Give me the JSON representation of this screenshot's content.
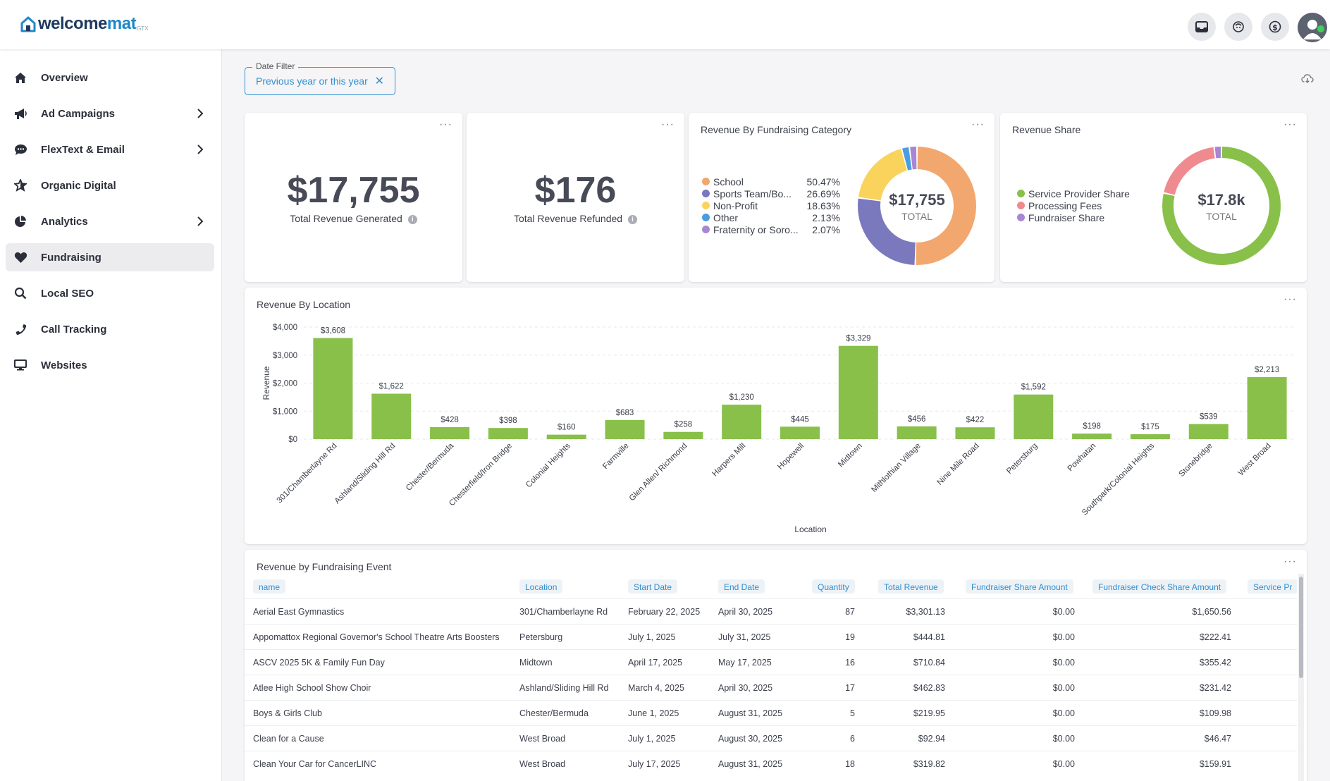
{
  "app": {
    "logo_main": "welcome",
    "logo_accent": "mat",
    "logo_sub": "GTX"
  },
  "top_icons": [
    "inbox-icon",
    "support-icon",
    "billing-icon",
    "user-icon"
  ],
  "sidebar": {
    "items": [
      {
        "label": "Overview",
        "icon": "home-icon",
        "has_children": false,
        "active": false
      },
      {
        "label": "Ad Campaigns",
        "icon": "megaphone-icon",
        "has_children": true,
        "active": false
      },
      {
        "label": "FlexText & Email",
        "icon": "chat-icon",
        "has_children": true,
        "active": false
      },
      {
        "label": "Organic Digital",
        "icon": "star-icon",
        "has_children": false,
        "active": false
      },
      {
        "label": "Analytics",
        "icon": "pie-chart-icon",
        "has_children": true,
        "active": false
      },
      {
        "label": "Fundraising",
        "icon": "heart-icon",
        "has_children": false,
        "active": true
      },
      {
        "label": "Local SEO",
        "icon": "search-icon",
        "has_children": false,
        "active": false
      },
      {
        "label": "Call Tracking",
        "icon": "phone-icon",
        "has_children": false,
        "active": false
      },
      {
        "label": "Websites",
        "icon": "monitor-icon",
        "has_children": false,
        "active": false
      }
    ]
  },
  "filter": {
    "label": "Date Filter",
    "value": "Previous year or this year"
  },
  "kpis": {
    "revenue_generated": {
      "value": "$17,755",
      "label": "Total Revenue Generated"
    },
    "revenue_refunded": {
      "value": "$176",
      "label": "Total Revenue Refunded"
    }
  },
  "category_card": {
    "title": "Revenue By Fundraising Category",
    "center_value": "$17,755",
    "center_label": "TOTAL"
  },
  "share_card": {
    "title": "Revenue Share",
    "center_value": "$17.8k",
    "center_label": "TOTAL"
  },
  "location_card": {
    "title": "Revenue By Location"
  },
  "event_table": {
    "title": "Revenue by Fundraising Event",
    "columns": [
      "name",
      "Location",
      "Start Date",
      "End Date",
      "Quantity",
      "Total Revenue",
      "Fundraiser Share Amount",
      "Fundraiser Check Share Amount",
      "Service Pr"
    ],
    "rows": [
      [
        "Aerial East Gymnastics",
        "301/Chamberlayne Rd",
        "February 22, 2025",
        "April 30, 2025",
        "87",
        "$3,301.13",
        "$0.00",
        "$1,650.56"
      ],
      [
        "Appomattox Regional Governor's School Theatre Arts Boosters",
        "Petersburg",
        "July 1, 2025",
        "July 31, 2025",
        "19",
        "$444.81",
        "$0.00",
        "$222.41"
      ],
      [
        "ASCV 2025 5K & Family Fun Day",
        "Midtown",
        "April 17, 2025",
        "May 17, 2025",
        "16",
        "$710.84",
        "$0.00",
        "$355.42"
      ],
      [
        "Atlee High School Show Choir",
        "Ashland/Sliding Hill Rd",
        "March 4, 2025",
        "April 30, 2025",
        "17",
        "$462.83",
        "$0.00",
        "$231.42"
      ],
      [
        "Boys & Girls Club",
        "Chester/Bermuda",
        "June 1, 2025",
        "August 31, 2025",
        "5",
        "$219.95",
        "$0.00",
        "$109.98"
      ],
      [
        "Clean for a Cause",
        "West Broad",
        "July 1, 2025",
        "August 30, 2025",
        "6",
        "$92.94",
        "$0.00",
        "$46.47"
      ],
      [
        "Clean Your Car for CancerLINC",
        "West Broad",
        "July 17, 2025",
        "August 31, 2025",
        "18",
        "$319.82",
        "$0.00",
        "$159.91"
      ]
    ]
  },
  "chart_data": [
    {
      "type": "pie",
      "title": "Revenue By Fundraising Category",
      "labels": [
        "School",
        "Sports Team/Bo...",
        "Non-Profit",
        "Other",
        "Fraternity or Soro..."
      ],
      "values": [
        50.47,
        26.69,
        18.63,
        2.13,
        2.07
      ],
      "value_labels": [
        "50.47%",
        "26.69%",
        "18.63%",
        "2.13%",
        "2.07%"
      ],
      "colors": [
        "#f2a76e",
        "#7b79bd",
        "#fad35c",
        "#4a9de0",
        "#a986d2"
      ],
      "legend": "left"
    },
    {
      "type": "pie",
      "title": "Revenue Share",
      "labels": [
        "Service Provider Share",
        "Processing Fees",
        "Fundraiser Share"
      ],
      "values": [
        78.5,
        19.5,
        2.0
      ],
      "colors": [
        "#88c04a",
        "#ef8a8e",
        "#a986d2"
      ],
      "legend": "left"
    },
    {
      "type": "bar",
      "title": "Revenue By Location",
      "xlabel": "Location",
      "ylabel": "Revenue",
      "ylim": [
        0,
        4000
      ],
      "yticks": [
        0,
        1000,
        2000,
        3000,
        4000
      ],
      "ytick_labels": [
        "$0",
        "$1,000",
        "$2,000",
        "$3,000",
        "$4,000"
      ],
      "categories": [
        "301/Chamberlayne Rd",
        "Ashland/Sliding Hill Rd",
        "Chester/Bermuda",
        "Chesterfield/Iron Bridge",
        "Colonial Heights",
        "Farmville",
        "Glen Allen/ Richmond",
        "Harpers Mill",
        "Hopewell",
        "Midtown",
        "Mithlothian Village",
        "Nine Mile Road",
        "Petersburg",
        "Powhatan",
        "Southpark/Colonial Heights",
        "Stonebridge",
        "West Broad"
      ],
      "values": [
        3608,
        1622,
        428,
        398,
        160,
        683,
        258,
        1230,
        445,
        3329,
        456,
        422,
        1592,
        198,
        175,
        539,
        2213
      ],
      "value_labels": [
        "$3,608",
        "$1,622",
        "$428",
        "$398",
        "$160",
        "$683",
        "$258",
        "$1,230",
        "$445",
        "$3,329",
        "$456",
        "$422",
        "$1,592",
        "$198",
        "$175",
        "$539",
        "$2,213"
      ],
      "color": "#88c04a",
      "grid": true
    }
  ]
}
